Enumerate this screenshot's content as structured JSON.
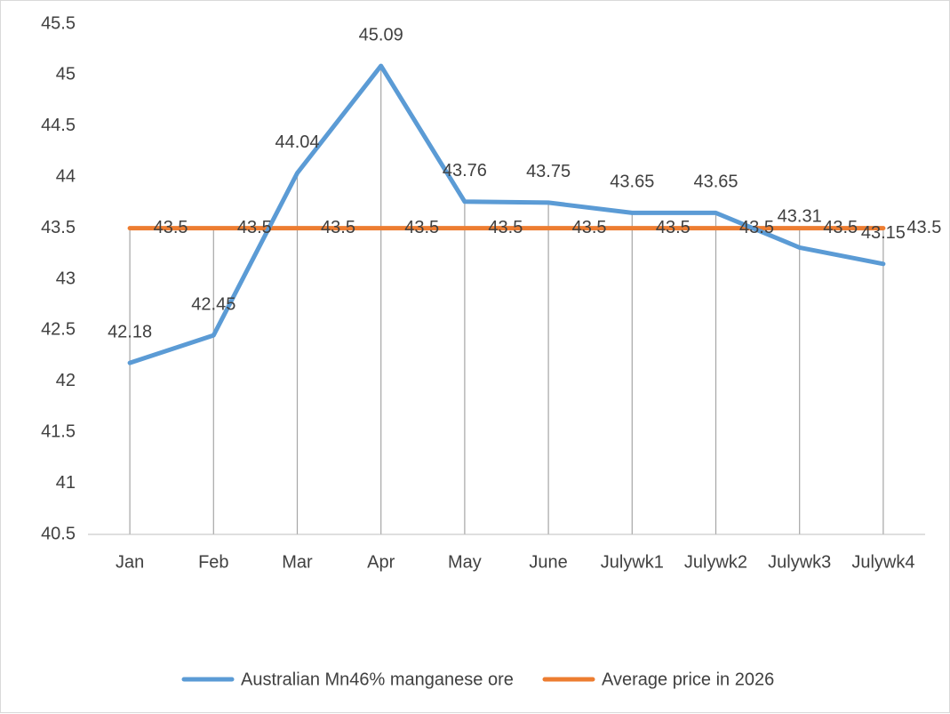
{
  "chart_data": {
    "type": "line",
    "categories": [
      "Jan",
      "Feb",
      "Mar",
      "Apr",
      "May",
      "June",
      "Julywk1",
      "Julywk2",
      "Julywk3",
      "Julywk4"
    ],
    "series": [
      {
        "name": "Australian Mn46% manganese ore",
        "values": [
          42.18,
          42.45,
          44.04,
          45.09,
          43.76,
          43.75,
          43.65,
          43.65,
          43.31,
          43.15
        ],
        "labels": [
          "42.18",
          "42.45",
          "44.04",
          "45.09",
          "43.76",
          "43.75",
          "43.65",
          "43.65",
          "43.31",
          "43.15"
        ],
        "color": "#5B9BD5"
      },
      {
        "name": "Average price in 2026",
        "values": [
          43.5,
          43.5,
          43.5,
          43.5,
          43.5,
          43.5,
          43.5,
          43.5,
          43.5,
          43.5
        ],
        "labels": [
          "43.5",
          "43.5",
          "43.5",
          "43.5",
          "43.5",
          "43.5",
          "43.5",
          "43.5",
          "43.5",
          "43.5"
        ],
        "color": "#ED7D31"
      }
    ],
    "yticks": [
      "40.5",
      "41",
      "41.5",
      "42",
      "42.5",
      "43",
      "43.5",
      "44",
      "44.5",
      "45",
      "45.5"
    ],
    "ylim": [
      40.5,
      45.5
    ],
    "drop_lines": true,
    "legend": "bottom"
  }
}
